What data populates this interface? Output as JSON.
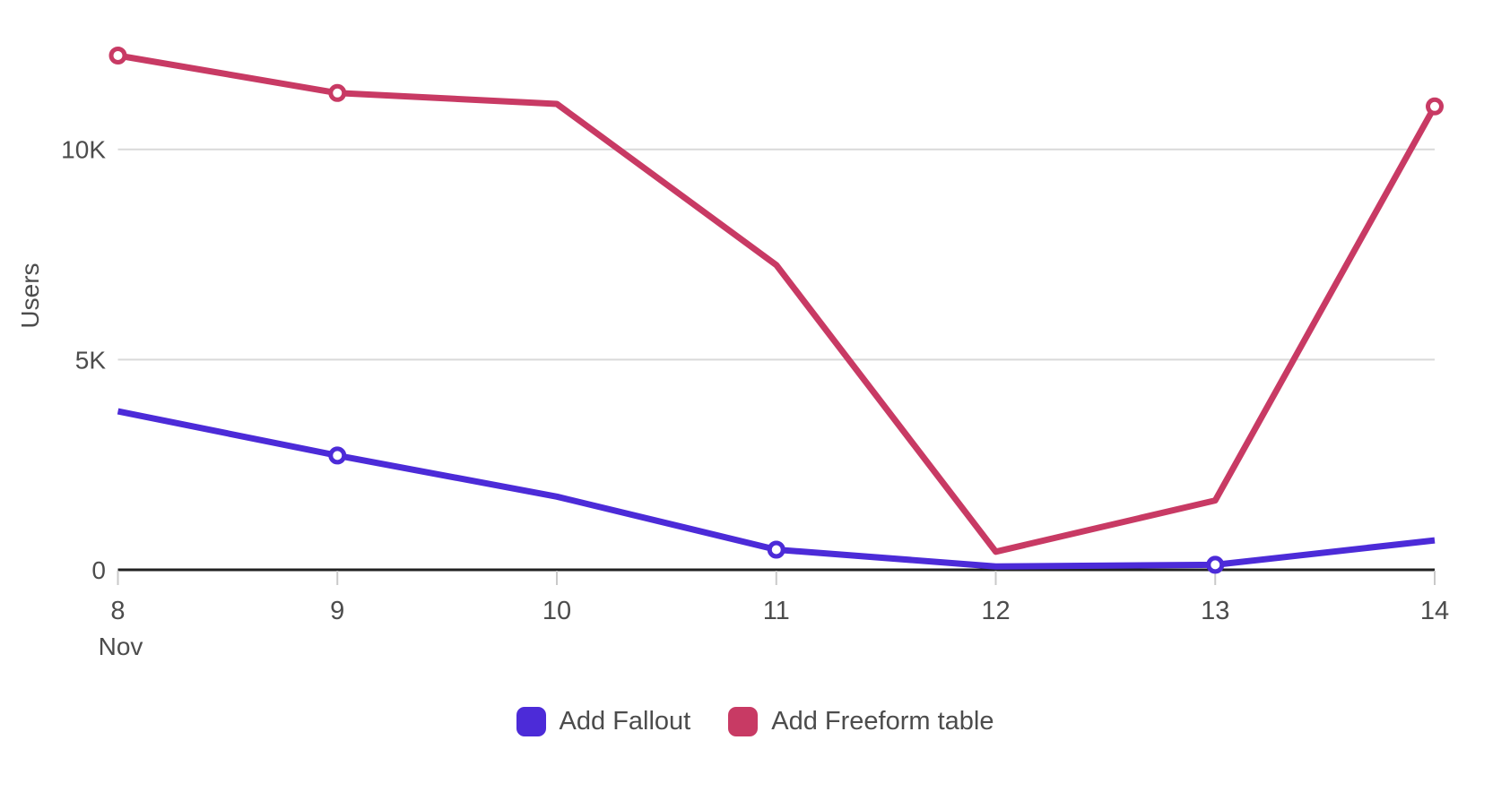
{
  "chart_data": {
    "type": "line",
    "title": "",
    "xlabel": "",
    "ylabel": "Users",
    "x": [
      8,
      9,
      10,
      11,
      12,
      13,
      14
    ],
    "x_tick_labels": [
      "8",
      "9",
      "10",
      "11",
      "12",
      "13",
      "14"
    ],
    "x_axis_month_label": "Nov",
    "y_ticks": [
      {
        "value": 0,
        "label": "0"
      },
      {
        "value": 5000,
        "label": "5K"
      },
      {
        "value": 10000,
        "label": "10K"
      }
    ],
    "ylim": [
      0,
      12750
    ],
    "grid": "horizontal",
    "legend_position": "bottom",
    "series": [
      {
        "name": "Add Fallout",
        "color": "#4C2BD8",
        "values": [
          3770,
          2720,
          1740,
          480,
          80,
          120,
          700
        ],
        "marker_indices": [
          1,
          3,
          5
        ]
      },
      {
        "name": "Add Freeform table",
        "color": "#C83A64",
        "values": [
          12230,
          11340,
          11080,
          7250,
          430,
          1650,
          11020
        ],
        "marker_indices": [
          0,
          1,
          6
        ]
      }
    ]
  },
  "style_colors": {
    "axis": "#222222",
    "gridline": "#d9d9d9",
    "tick": "#c9c9c9",
    "label_text": "#4c4c4c"
  }
}
